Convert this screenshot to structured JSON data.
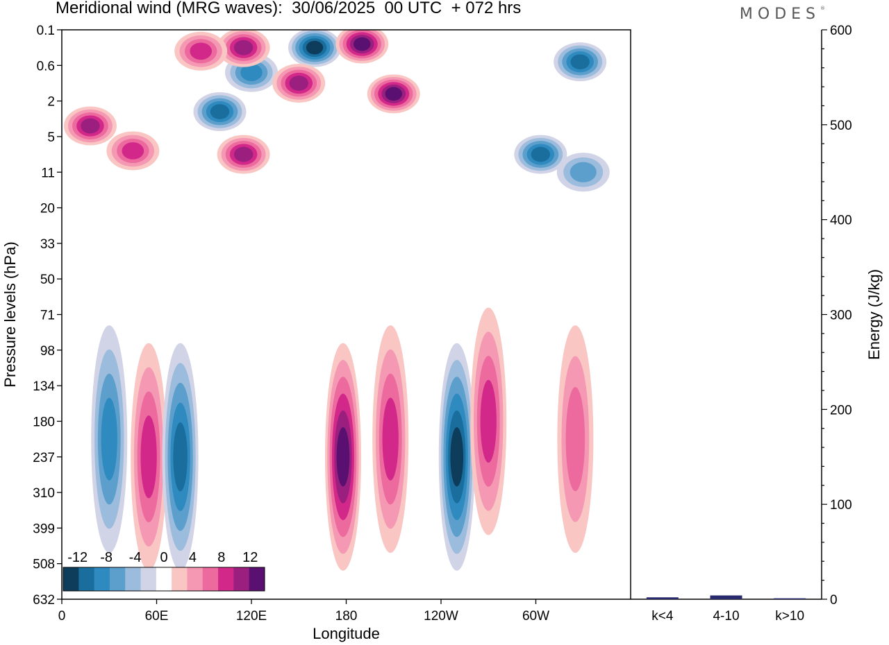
{
  "title": "Meridional wind (MRG waves):  30/06/2025  00 UTC  + 072 hrs",
  "brand": "MODES",
  "brand_mark": "®",
  "colors": {
    "neg": [
      "#0e3d5c",
      "#1a6e9e",
      "#2f8ac0",
      "#5d9fcc",
      "#9bbcdc",
      "#d1d3e6"
    ],
    "pos": [
      "#f9c6c4",
      "#f598b3",
      "#ec6a9d",
      "#d1288a",
      "#9b1f7e",
      "#5a1070"
    ]
  },
  "chart_data": [
    {
      "type": "heatmap",
      "title": "Meridional wind (MRG waves):  30/06/2025  00 UTC  + 072 hrs",
      "xlabel": "Longitude",
      "ylabel": "Pressure levels (hPa)",
      "x_ticks": [
        "0",
        "60E",
        "120E",
        "180",
        "120W",
        "60W"
      ],
      "y_ticks": [
        "0.1",
        "0.6",
        "2",
        "5",
        "11",
        "20",
        "33",
        "50",
        "71",
        "98",
        "134",
        "180",
        "237",
        "310",
        "399",
        "508",
        "632"
      ],
      "colorbar": {
        "labels": [
          "-12",
          "-8",
          "-4",
          "0",
          "4",
          "8",
          "12"
        ],
        "levels": [
          -14,
          -12,
          -10,
          -8,
          -6,
          -4,
          -2,
          2,
          4,
          6,
          8,
          10,
          12,
          14
        ]
      },
      "features": [
        {
          "lon": 120,
          "p_index": 1.2,
          "v": -8
        },
        {
          "lon": 100,
          "p_index": 2.3,
          "v": -9
        },
        {
          "lon": 160,
          "p_index": 0.5,
          "v": -12
        },
        {
          "lon": 190,
          "p_index": 0.4,
          "v": 14
        },
        {
          "lon": 210,
          "p_index": 1.8,
          "v": 14
        },
        {
          "lon": 150,
          "p_index": 1.5,
          "v": 10
        },
        {
          "lon": 115,
          "p_index": 0.5,
          "v": 10
        },
        {
          "lon": 88,
          "p_index": 0.6,
          "v": 8
        },
        {
          "lon": 18,
          "p_index": 2.7,
          "v": 9
        },
        {
          "lon": 45,
          "p_index": 3.4,
          "v": 8
        },
        {
          "lon": 115,
          "p_index": 3.5,
          "v": 10
        },
        {
          "lon": 328,
          "p_index": 0.9,
          "v": -10
        },
        {
          "lon": 303,
          "p_index": 3.5,
          "v": -10
        },
        {
          "lon": 330,
          "p_index": 4.0,
          "v": -6
        },
        {
          "lon": 30,
          "p_index": 11.5,
          "v": -8
        },
        {
          "lon": 55,
          "p_index": 12.0,
          "v": 8
        },
        {
          "lon": 75,
          "p_index": 12.0,
          "v": -9
        },
        {
          "lon": 178,
          "p_index": 12.0,
          "v": 11
        },
        {
          "lon": 208,
          "p_index": 11.5,
          "v": 7
        },
        {
          "lon": 250,
          "p_index": 12.0,
          "v": -11
        },
        {
          "lon": 270,
          "p_index": 11.0,
          "v": 8
        },
        {
          "lon": 325,
          "p_index": 11.5,
          "v": 6
        }
      ]
    },
    {
      "type": "bar",
      "categories": [
        "k<4",
        "4-10",
        "k>10"
      ],
      "values": [
        2,
        4,
        1
      ],
      "ylabel": "Energy (J/kg)",
      "ylim": [
        0,
        600
      ],
      "y_ticks": [
        "0",
        "100",
        "200",
        "300",
        "400",
        "500",
        "600"
      ],
      "bar_color": "#2a2a6e"
    }
  ]
}
